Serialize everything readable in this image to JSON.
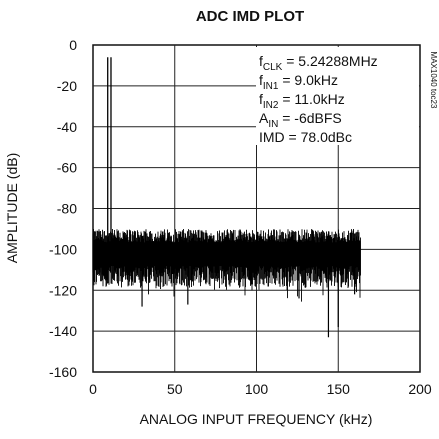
{
  "chart_data": {
    "type": "line",
    "title": "ADC IMD PLOT",
    "xlabel": "ANALOG INPUT FREQUENCY (kHz)",
    "ylabel": "AMPLITUDE (dB)",
    "xlim": [
      0,
      200
    ],
    "ylim": [
      -160,
      0
    ],
    "xticks": [
      "0",
      "50",
      "100",
      "150",
      "200"
    ],
    "yticks": [
      "0",
      "-20",
      "-40",
      "-60",
      "-80",
      "-100",
      "-120",
      "-140",
      "-160"
    ],
    "grid": true,
    "side_label": "MAX1040 toc23",
    "annotations": [
      {
        "main": "f",
        "sub": "CLK",
        "rest": " = 5.24288MHz"
      },
      {
        "main": "f",
        "sub": "IN1",
        "rest": " = 9.0kHz"
      },
      {
        "main": "f",
        "sub": "IN2",
        "rest": " = 11.0kHz"
      },
      {
        "main": "A",
        "sub": "IN",
        "rest": " = -6dBFS"
      },
      {
        "main": "IMD = 78.0dBc",
        "sub": "",
        "rest": ""
      }
    ],
    "tones": [
      {
        "x": 9.0,
        "y": -6
      },
      {
        "x": 11.0,
        "y": -6
      }
    ],
    "spectrum": {
      "x_start": 0,
      "x_end": 163.8,
      "floor_center_db": -102,
      "spread_db": 12,
      "notable_spurs": [
        {
          "x": 30,
          "y": -128
        },
        {
          "x": 58,
          "y": -127
        },
        {
          "x": 126,
          "y": -124
        },
        {
          "x": 144,
          "y": -143
        },
        {
          "x": 150,
          "y": -138
        },
        {
          "x": 160,
          "y": -122
        }
      ]
    }
  }
}
